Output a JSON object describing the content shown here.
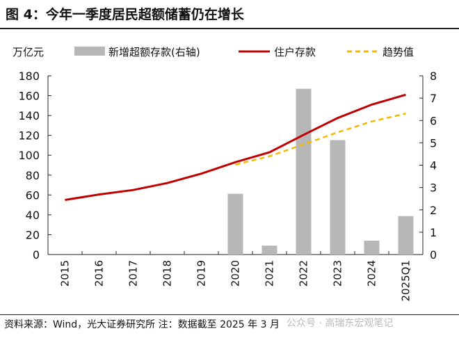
{
  "title": "图 4：今年一季度居民超额储蓄仍在增长",
  "source": "资料来源：Wind，光大证券研究所 注：数据截至 2025 年 3 月",
  "watermark": "公众号 · 高瑞东宏观笔记",
  "chart_data": {
    "type": "bar+line",
    "ylabel_left": "万亿元",
    "categories": [
      "2015",
      "2016",
      "2017",
      "2018",
      "2019",
      "2020",
      "2021",
      "2022",
      "2023",
      "2024",
      "2025Q1"
    ],
    "ylim_left": [
      0,
      180
    ],
    "yticks_left": [
      0,
      20,
      40,
      60,
      80,
      100,
      120,
      140,
      160,
      180
    ],
    "ylim_right": [
      0,
      8
    ],
    "yticks_right": [
      0,
      1,
      2,
      3,
      4,
      5,
      6,
      7,
      8
    ],
    "series": [
      {
        "name": "新增超额存款(右轴)",
        "type": "bar",
        "axis": "right",
        "color": "#b7b7b7",
        "values": [
          null,
          null,
          null,
          null,
          null,
          2.72,
          0.4,
          7.42,
          5.12,
          0.62,
          1.72
        ]
      },
      {
        "name": "住户存款",
        "type": "line",
        "axis": "left",
        "color": "#c00000",
        "values": [
          55,
          60.5,
          65,
          72,
          81.5,
          93,
          103,
          120.5,
          137.5,
          151,
          161
        ]
      },
      {
        "name": "趋势值",
        "type": "dashed-line",
        "axis": "left",
        "color": "#f5b800",
        "values": [
          null,
          null,
          null,
          null,
          null,
          90.5,
          99,
          111,
          123,
          134,
          142
        ]
      }
    ],
    "legend_position": "top",
    "grid": false
  }
}
